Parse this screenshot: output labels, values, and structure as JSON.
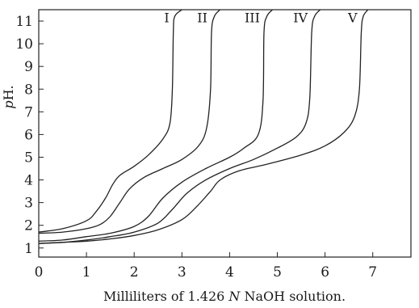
{
  "chart_data": {
    "type": "line",
    "title": "",
    "xlabel_prefix": "Milliliters of 1.426 ",
    "xlabel_italic": "N",
    "xlabel_suffix": " NaOH solution.",
    "ylabel_italic": "p",
    "ylabel_suffix": "H.",
    "xlim": [
      0,
      7.8
    ],
    "ylim": [
      0.6,
      11.5
    ],
    "xticks": [
      "0",
      "1",
      "2",
      "3",
      "4",
      "5",
      "6",
      "7"
    ],
    "yticks": [
      "1",
      "2",
      "3",
      "4",
      "5",
      "6",
      "7",
      "8",
      "9",
      "10",
      "11"
    ],
    "grid": false,
    "series": [
      {
        "name": "I",
        "x": [
          0,
          0.5,
          1.0,
          1.2,
          1.4,
          1.55,
          1.7,
          2.0,
          2.3,
          2.6,
          2.75,
          2.8,
          2.82,
          2.85,
          3.0
        ],
        "y": [
          1.7,
          1.85,
          2.2,
          2.6,
          3.2,
          3.8,
          4.2,
          4.6,
          5.1,
          5.8,
          6.5,
          8.0,
          10.5,
          11.2,
          11.5
        ]
      },
      {
        "name": "II",
        "x": [
          0,
          0.5,
          1.0,
          1.3,
          1.5,
          1.7,
          1.9,
          2.2,
          2.6,
          3.0,
          3.35,
          3.52,
          3.6,
          3.62,
          3.68,
          3.8
        ],
        "y": [
          1.65,
          1.7,
          1.85,
          2.05,
          2.4,
          3.0,
          3.6,
          4.1,
          4.5,
          4.9,
          5.5,
          6.3,
          8.0,
          10.5,
          11.2,
          11.5
        ]
      },
      {
        "name": "III",
        "x": [
          0,
          0.5,
          1.0,
          1.5,
          2.0,
          2.3,
          2.6,
          3.0,
          3.5,
          4.0,
          4.3,
          4.6,
          4.7,
          4.72,
          4.78,
          4.9
        ],
        "y": [
          1.3,
          1.35,
          1.5,
          1.65,
          1.95,
          2.4,
          3.2,
          3.9,
          4.5,
          5.0,
          5.4,
          6.0,
          7.5,
          10.5,
          11.2,
          11.5
        ]
      },
      {
        "name": "IV",
        "x": [
          0,
          0.5,
          1.0,
          1.5,
          2.0,
          2.5,
          2.8,
          3.1,
          3.5,
          4.0,
          4.5,
          5.0,
          5.4,
          5.6,
          5.68,
          5.72,
          5.78,
          5.9
        ],
        "y": [
          1.2,
          1.25,
          1.35,
          1.5,
          1.7,
          2.1,
          2.7,
          3.4,
          4.0,
          4.5,
          4.9,
          5.4,
          5.9,
          6.5,
          7.6,
          10.5,
          11.2,
          11.5
        ]
      },
      {
        "name": "V",
        "x": [
          0,
          0.5,
          1.0,
          1.5,
          2.0,
          2.5,
          3.0,
          3.3,
          3.6,
          3.8,
          4.2,
          4.8,
          5.5,
          6.0,
          6.4,
          6.62,
          6.72,
          6.76,
          6.8,
          6.9
        ],
        "y": [
          1.2,
          1.25,
          1.3,
          1.4,
          1.55,
          1.8,
          2.25,
          2.8,
          3.5,
          4.0,
          4.4,
          4.7,
          5.1,
          5.5,
          6.1,
          6.8,
          8.0,
          10.5,
          11.2,
          11.5
        ]
      }
    ]
  }
}
